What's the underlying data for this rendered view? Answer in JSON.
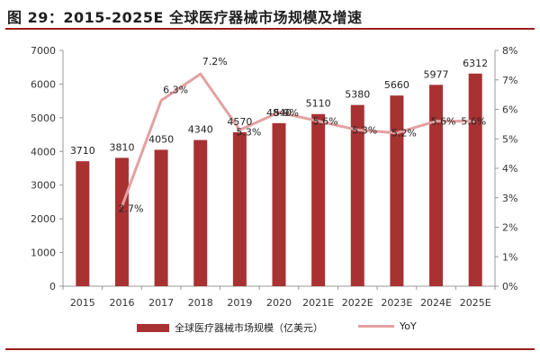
{
  "title": "图 29：2015-2025E 全球医疗器械市场规模及增速",
  "colors": {
    "bar": "#a83232",
    "line": "#e3a0a0",
    "title_rule": "#9b1c1c"
  },
  "chart_data": {
    "type": "bar",
    "categories": [
      "2015",
      "2016",
      "2017",
      "2018",
      "2019",
      "2020",
      "2021E",
      "2022E",
      "2023E",
      "2024E",
      "2025E"
    ],
    "series": [
      {
        "name": "全球医疗器械市场规模（亿美元）",
        "type": "bar",
        "axis": "left",
        "values": [
          3710,
          3810,
          4050,
          4340,
          4570,
          4840,
          5110,
          5380,
          5660,
          5977,
          6312
        ],
        "labels": [
          "3710",
          "3810",
          "4050",
          "4340",
          "4570",
          "4840",
          "5110",
          "5380",
          "5660",
          "5977",
          "6312"
        ]
      },
      {
        "name": "YoY",
        "type": "line",
        "axis": "right",
        "values": [
          null,
          2.7,
          6.3,
          7.2,
          5.3,
          5.9,
          5.6,
          5.3,
          5.2,
          5.6,
          5.6
        ],
        "labels": [
          "",
          "2.7%",
          "6.3%",
          "7.2%",
          "5.3%",
          "5.9%",
          "5.6%",
          "5.3%",
          "5.2%",
          "5.6%",
          "5.6%"
        ]
      }
    ],
    "y_left": {
      "min": 0,
      "max": 7000,
      "ticks": [
        "0",
        "1000",
        "2000",
        "3000",
        "4000",
        "5000",
        "6000",
        "7000"
      ]
    },
    "y_right": {
      "min": 0,
      "max": 8,
      "ticks": [
        "0%",
        "1%",
        "2%",
        "3%",
        "4%",
        "5%",
        "6%",
        "7%",
        "8%"
      ]
    },
    "grid": false,
    "legend_position": "bottom"
  }
}
